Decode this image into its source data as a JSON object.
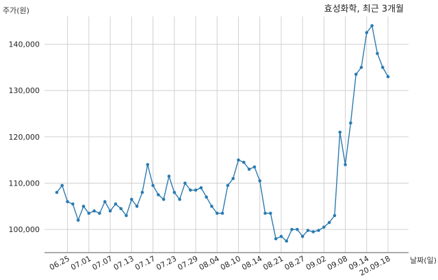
{
  "chart_data": {
    "type": "line",
    "title": "효성화학, 최근 3개월",
    "xlabel": "날짜(일)",
    "ylabel": "주가(원)",
    "ylim": [
      95000,
      146000
    ],
    "yticks": [
      100000,
      110000,
      120000,
      130000,
      140000
    ],
    "ytick_labels": [
      "100,000",
      "110,000",
      "120,000",
      "130,000",
      "140,000"
    ],
    "xtick_labels": [
      "06.25",
      "07.01",
      "07.07",
      "07.13",
      "07.17",
      "07.23",
      "07.29",
      "08.04",
      "08.10",
      "08.14",
      "08.21",
      "08.27",
      "09.02",
      "09.08",
      "09.14",
      "20.09.18"
    ],
    "xtick_index": [
      2,
      6,
      10,
      14,
      18,
      22,
      26,
      30,
      34,
      38,
      42,
      46,
      50,
      54,
      58,
      62
    ],
    "grid": true,
    "line_color": "#2a7ab0",
    "series": [
      {
        "values": [
          108000,
          109500,
          106000,
          105500,
          102000,
          105000,
          103500,
          104000,
          103500,
          106000,
          104000,
          105500,
          104500,
          103000,
          106500,
          105000,
          108000,
          114000,
          109500,
          107500,
          106500,
          111500,
          108000,
          106500,
          110000,
          108500,
          108500,
          109000,
          107000,
          105000,
          103500,
          103500,
          109500,
          111000,
          115000,
          114500,
          113000,
          113500,
          110500,
          103500,
          103500,
          98000,
          98500,
          97500,
          100000,
          100000,
          98500,
          99800,
          99500,
          99800,
          100500,
          101500,
          103000,
          121000,
          114000,
          123000,
          133500,
          135000,
          142500,
          144000,
          138000,
          135000,
          133000
        ]
      }
    ]
  }
}
